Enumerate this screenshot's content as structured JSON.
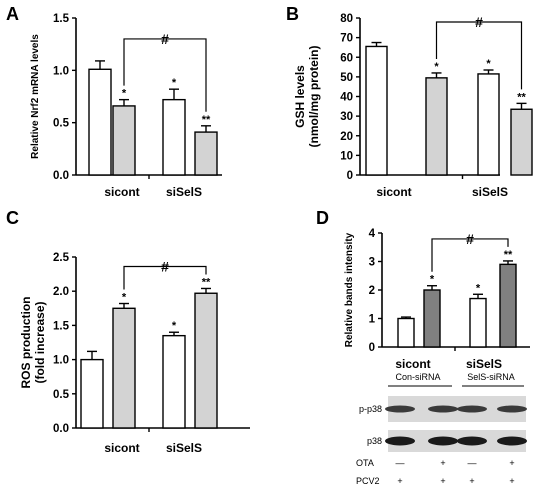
{
  "chart_data": [
    {
      "id": "A",
      "type": "bar",
      "panel_label": "A",
      "ylabel": "Relative Nrf2 mRNA levels",
      "ylim": [
        0,
        1.5
      ],
      "yticks": [
        "0.0",
        "0.5",
        "1.0",
        "1.5"
      ],
      "tick_values": [
        0,
        0.5,
        1.0,
        1.5
      ],
      "categories": [
        "sicont",
        "siSelS"
      ],
      "bars": [
        {
          "value": 1.01,
          "err": 0.08,
          "fill": "#ffffff",
          "sig": ""
        },
        {
          "value": 0.66,
          "err": 0.06,
          "fill": "#d3d3d3",
          "sig": "*"
        },
        {
          "value": 0.72,
          "err": 0.1,
          "fill": "#ffffff",
          "sig": "*"
        },
        {
          "value": 0.41,
          "err": 0.06,
          "fill": "#d3d3d3",
          "sig": "**"
        }
      ],
      "bracket": {
        "from": 1,
        "to": 3,
        "label": "#"
      }
    },
    {
      "id": "B",
      "type": "bar",
      "panel_label": "B",
      "ylabel": "GSH levels",
      "ylabel2": "(nmol/mg protein)",
      "ylim": [
        0,
        80
      ],
      "yticks": [
        "0",
        "10",
        "20",
        "30",
        "40",
        "50",
        "60",
        "70",
        "80"
      ],
      "tick_values": [
        0,
        10,
        20,
        30,
        40,
        50,
        60,
        70,
        80
      ],
      "categories": [
        "sicont",
        "siSelS"
      ],
      "bars": [
        {
          "value": 65.5,
          "err": 2.0,
          "fill": "#ffffff",
          "sig": ""
        },
        {
          "value": 49.5,
          "err": 2.5,
          "fill": "#d3d3d3",
          "sig": "*"
        },
        {
          "value": 51.5,
          "err": 2.0,
          "fill": "#ffffff",
          "sig": "*"
        },
        {
          "value": 33.5,
          "err": 3.0,
          "fill": "#d3d3d3",
          "sig": "**"
        }
      ],
      "bracket": {
        "from": 1,
        "to": 3,
        "label": "#"
      }
    },
    {
      "id": "C",
      "type": "bar",
      "panel_label": "C",
      "ylabel": "ROS production",
      "ylabel2": "(fold increase)",
      "ylim": [
        0,
        2.5
      ],
      "yticks": [
        "0.0",
        "0.5",
        "1.0",
        "1.5",
        "2.0",
        "2.5"
      ],
      "tick_values": [
        0,
        0.5,
        1.0,
        1.5,
        2.0,
        2.5
      ],
      "categories": [
        "sicont",
        "siSelS"
      ],
      "bars": [
        {
          "value": 1.0,
          "err": 0.12,
          "fill": "#ffffff",
          "sig": ""
        },
        {
          "value": 1.75,
          "err": 0.07,
          "fill": "#d3d3d3",
          "sig": "*"
        },
        {
          "value": 1.35,
          "err": 0.05,
          "fill": "#ffffff",
          "sig": "*"
        },
        {
          "value": 1.97,
          "err": 0.07,
          "fill": "#d3d3d3",
          "sig": "**"
        }
      ],
      "bracket": {
        "from": 1,
        "to": 3,
        "label": "#"
      }
    },
    {
      "id": "D",
      "type": "bar",
      "panel_label": "D",
      "ylabel": "Relative bands intensity",
      "ylim": [
        0,
        4
      ],
      "yticks": [
        "0",
        "1",
        "2",
        "3",
        "4"
      ],
      "tick_values": [
        0,
        1,
        2,
        3,
        4
      ],
      "categories": [
        "sicont",
        "siSelS"
      ],
      "bars": [
        {
          "value": 1.0,
          "err": 0.05,
          "fill": "#ffffff",
          "sig": ""
        },
        {
          "value": 2.0,
          "err": 0.15,
          "fill": "#808080",
          "sig": "*"
        },
        {
          "value": 1.7,
          "err": 0.15,
          "fill": "#ffffff",
          "sig": "*"
        },
        {
          "value": 2.9,
          "err": 0.12,
          "fill": "#808080",
          "sig": "**"
        }
      ],
      "bracket": {
        "from": 1,
        "to": 3,
        "label": "#"
      }
    }
  ],
  "blot": {
    "groups": [
      "Con-siRNA",
      "SelS-siRNA"
    ],
    "rows": [
      "p-p38",
      "p38"
    ],
    "treatments": [
      {
        "label": "OTA",
        "marks": [
          "—",
          "+",
          "—",
          "+"
        ]
      },
      {
        "label": "PCV2",
        "marks": [
          "+",
          "+",
          "+",
          "+"
        ]
      }
    ]
  }
}
